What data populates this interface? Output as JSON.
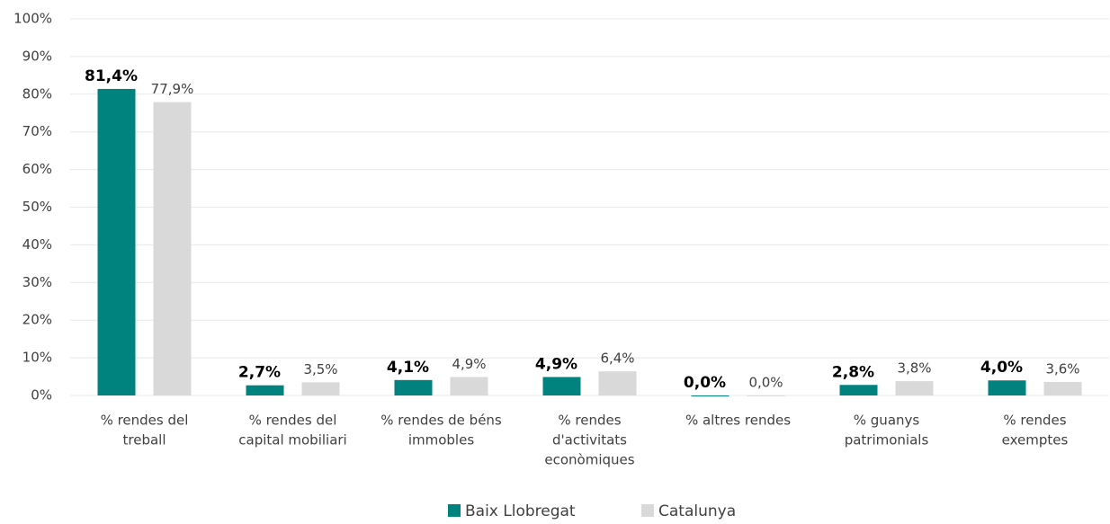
{
  "chart_data": {
    "type": "bar",
    "categories": [
      [
        "% rendes del",
        "treball"
      ],
      [
        "% rendes del",
        "capital mobiliari"
      ],
      [
        "% rendes de béns",
        "immobles"
      ],
      [
        "% rendes",
        "d'activitats",
        "econòmiques"
      ],
      [
        "% altres rendes"
      ],
      [
        "% guanys",
        "patrimonials"
      ],
      [
        "% rendes",
        "exemptes"
      ]
    ],
    "series": [
      {
        "name": "Baix Llobregat",
        "color": "#00827f",
        "values": [
          81.4,
          2.7,
          4.1,
          4.9,
          0.0,
          2.8,
          4.0
        ],
        "value_labels": [
          "81,4%",
          "2,7%",
          "4,1%",
          "4,9%",
          "0,0%",
          "2,8%",
          "4,0%"
        ]
      },
      {
        "name": "Catalunya",
        "color": "#d9d9d9",
        "values": [
          77.9,
          3.5,
          4.9,
          6.4,
          0.0,
          3.8,
          3.6
        ],
        "value_labels": [
          "77,9%",
          "3,5%",
          "4,9%",
          "6,4%",
          "0,0%",
          "3,8%",
          "3,6%"
        ]
      }
    ],
    "ylim": [
      0,
      100
    ],
    "yticks": [
      {
        "value": 0,
        "label": "0%"
      },
      {
        "value": 10,
        "label": "10%"
      },
      {
        "value": 20,
        "label": "20%"
      },
      {
        "value": 30,
        "label": "30%"
      },
      {
        "value": 40,
        "label": "40%"
      },
      {
        "value": 50,
        "label": "50%"
      },
      {
        "value": 60,
        "label": "60%"
      },
      {
        "value": 70,
        "label": "70%"
      },
      {
        "value": 80,
        "label": "80%"
      },
      {
        "value": 90,
        "label": "90%"
      },
      {
        "value": 100,
        "label": "100%"
      }
    ],
    "grid": true,
    "legend": "bottom"
  }
}
